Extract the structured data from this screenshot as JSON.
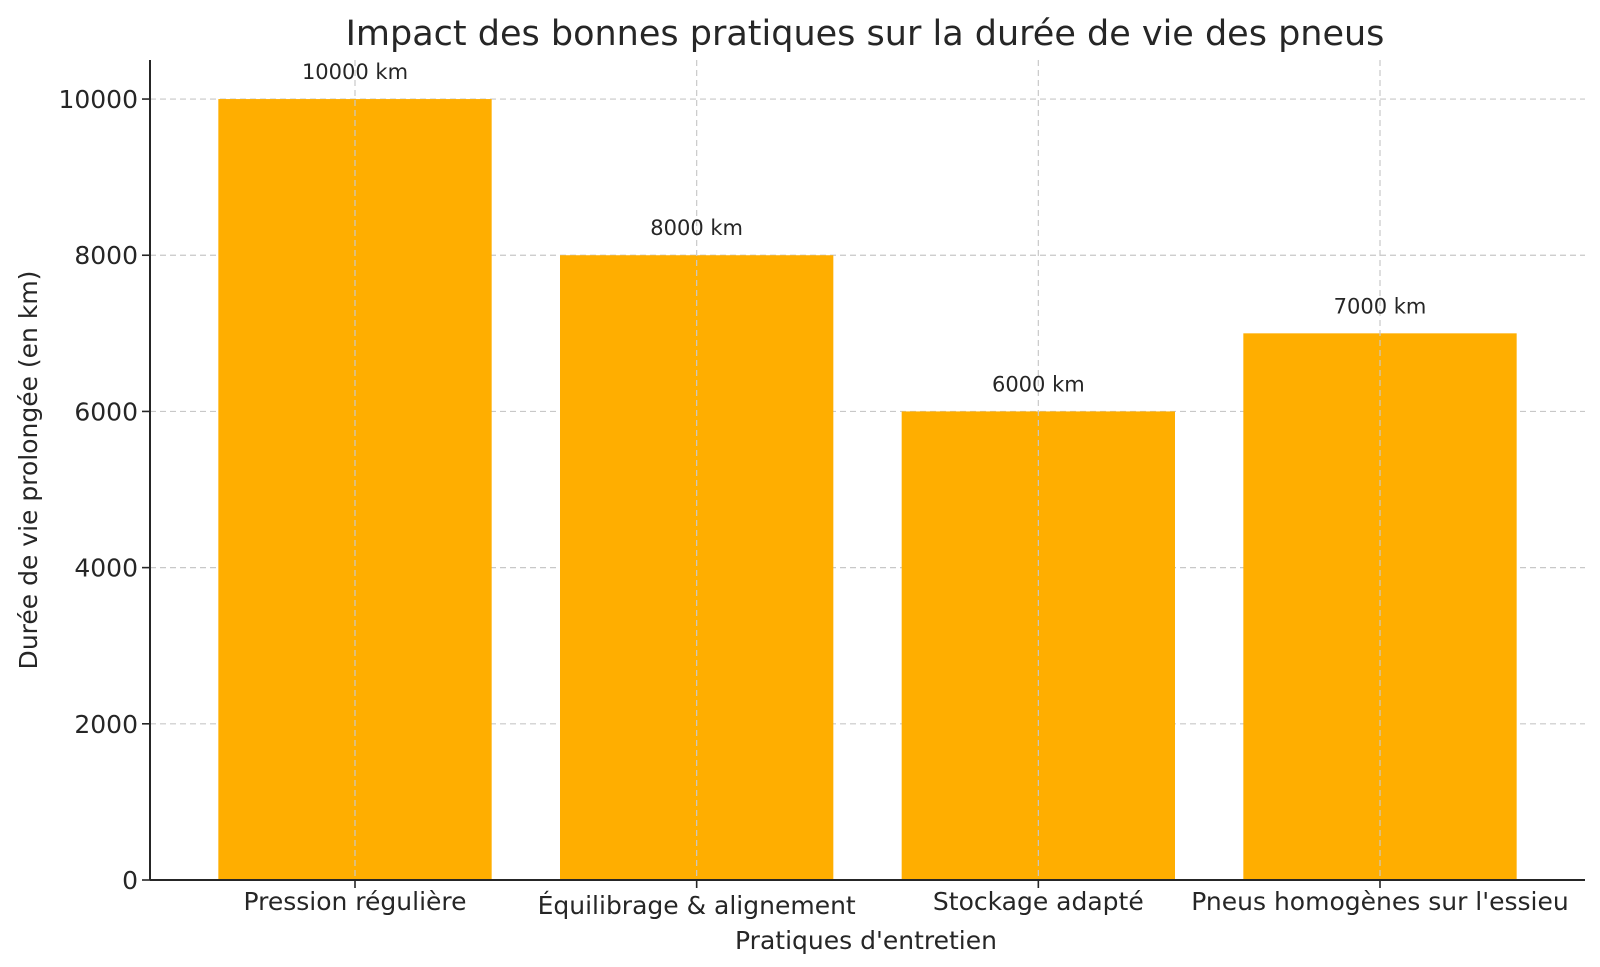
{
  "chart_data": {
    "type": "bar",
    "title": "Impact des bonnes pratiques sur la durée de vie des pneus",
    "xlabel": "Pratiques d'entretien",
    "ylabel": "Durée de vie prolongée (en km)",
    "categories": [
      "Pression régulière",
      "Équilibrage & alignement",
      "Stockage adapté",
      "Pneus homogènes sur l'essieu"
    ],
    "values": [
      10000,
      8000,
      6000,
      7000
    ],
    "data_labels": [
      "10000 km",
      "8000 km",
      "6000 km",
      "7000 km"
    ],
    "ylim": [
      0,
      10500
    ],
    "yticks": [
      0,
      2000,
      4000,
      6000,
      8000,
      10000
    ],
    "grid": true,
    "bar_color": "#FFAE00"
  }
}
